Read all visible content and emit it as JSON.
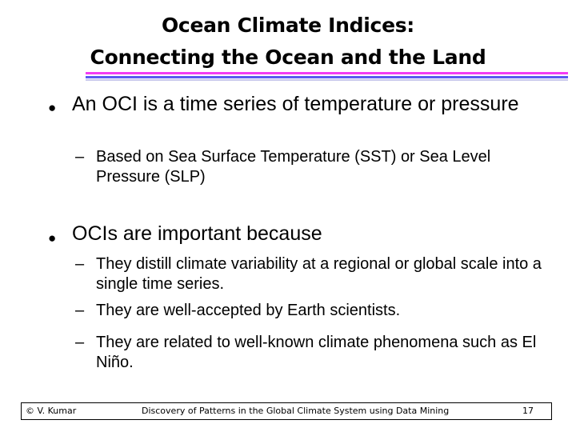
{
  "slide": {
    "title_line1": "Ocean Climate Indices:",
    "title_line2": "Connecting the Ocean and the Land",
    "bullet_glyph": "l",
    "dash_glyph": "–",
    "bullets": [
      {
        "text": "An OCI is a time series of temperature or pressure",
        "subs": [
          "Based on Sea Surface Temperature (SST) or Sea Level Pressure (SLP)"
        ]
      },
      {
        "text": "OCIs are important because",
        "subs": [
          "They distill climate variability at a regional or global scale into a single time series.",
          "They are well-accepted by Earth scientists.",
          "They are related to well-known climate phenomena such as El Niño."
        ]
      }
    ],
    "footer": {
      "left": "© V. Kumar",
      "center": "Discovery of Patterns in the Global Climate System using Data Mining",
      "page_number": "17"
    },
    "accent_colors": {
      "rule_magenta": "#f43cf4",
      "rule_blue": "#5a5af0",
      "rule_light": "#c8c8ec"
    }
  }
}
